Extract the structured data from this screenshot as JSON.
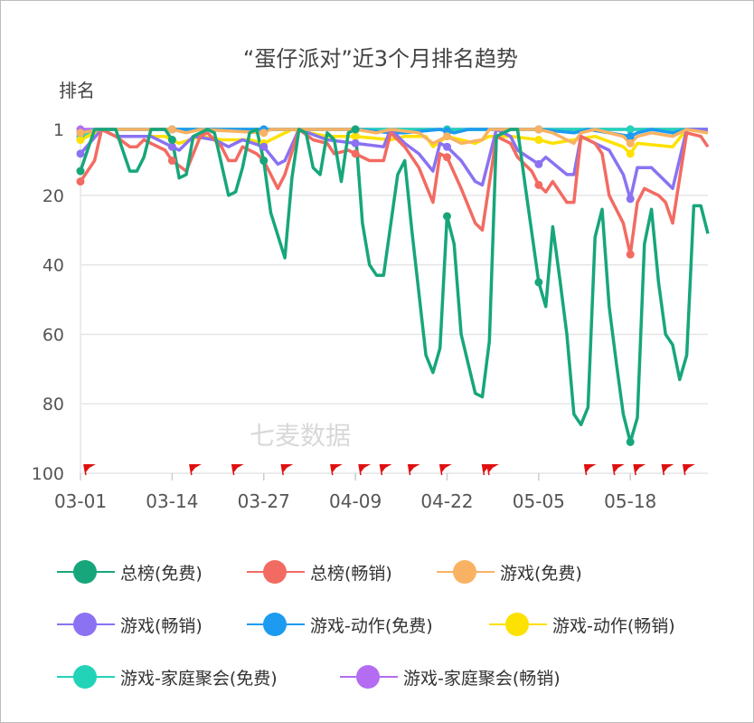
{
  "chart_data": {
    "type": "line",
    "title": "“蛋仔派对”近3个月排名趋势",
    "ylabel": "排名",
    "xlabel": "",
    "ylim": [
      1,
      100
    ],
    "y_inverted": true,
    "y_ticks": [
      "1",
      "20",
      "40",
      "60",
      "80",
      "100"
    ],
    "y_tick_values": [
      1,
      20,
      40,
      60,
      80,
      100
    ],
    "x_ticks": [
      "03-01",
      "03-14",
      "03-27",
      "04-09",
      "04-22",
      "05-05",
      "05-18"
    ],
    "x_tick_days": [
      0,
      13,
      26,
      39,
      52,
      65,
      78
    ],
    "x_range_days": [
      0,
      89
    ],
    "x_unit": "days since 03-01",
    "grid": true,
    "legend_position": "bottom",
    "watermark": "七麦数据",
    "event_flag_days": [
      0.5,
      15.5,
      21.5,
      28.5,
      35.5,
      39.5,
      42.5,
      46.5,
      51,
      57,
      57.7,
      71.5,
      75.5,
      78.5,
      82.5,
      85.5
    ],
    "series": [
      {
        "name": "总榜(免费)",
        "color": "#17a67b",
        "points": [
          [
            0,
            13
          ],
          [
            2,
            1
          ],
          [
            5,
            1
          ],
          [
            7,
            13
          ],
          [
            8,
            13
          ],
          [
            9,
            9
          ],
          [
            10,
            1
          ],
          [
            12,
            1
          ],
          [
            13,
            4
          ],
          [
            14,
            15
          ],
          [
            15,
            14
          ],
          [
            16,
            3
          ],
          [
            18,
            1
          ],
          [
            19,
            2
          ],
          [
            21,
            20
          ],
          [
            22,
            19
          ],
          [
            23,
            12
          ],
          [
            24,
            2
          ],
          [
            25,
            1
          ],
          [
            26,
            10
          ],
          [
            27,
            25
          ],
          [
            29,
            38
          ],
          [
            30,
            15
          ],
          [
            31,
            1
          ],
          [
            32,
            2
          ],
          [
            33,
            12
          ],
          [
            34,
            14
          ],
          [
            35,
            2
          ],
          [
            36,
            4
          ],
          [
            37,
            16
          ],
          [
            38,
            2
          ],
          [
            39,
            1
          ],
          [
            40,
            28
          ],
          [
            41,
            40
          ],
          [
            42,
            43
          ],
          [
            43,
            43
          ],
          [
            45,
            14
          ],
          [
            46,
            10
          ],
          [
            47,
            30
          ],
          [
            49,
            66
          ],
          [
            50,
            71
          ],
          [
            51,
            64
          ],
          [
            52,
            26
          ],
          [
            53,
            34
          ],
          [
            54,
            60
          ],
          [
            56,
            77
          ],
          [
            57,
            78
          ],
          [
            58,
            62
          ],
          [
            59,
            3
          ],
          [
            61,
            1
          ],
          [
            62,
            1
          ],
          [
            63,
            16
          ],
          [
            65,
            45
          ],
          [
            66,
            52
          ],
          [
            67,
            29
          ],
          [
            68,
            44
          ],
          [
            69,
            60
          ],
          [
            70,
            83
          ],
          [
            71,
            86
          ],
          [
            72,
            81
          ],
          [
            73,
            32
          ],
          [
            74,
            24
          ],
          [
            75,
            52
          ],
          [
            76,
            68
          ],
          [
            77,
            83
          ],
          [
            78,
            91
          ],
          [
            79,
            84
          ],
          [
            80,
            34
          ],
          [
            81,
            24
          ],
          [
            82,
            45
          ],
          [
            83,
            60
          ],
          [
            84,
            63
          ],
          [
            85,
            73
          ],
          [
            86,
            66
          ],
          [
            87,
            23
          ],
          [
            88,
            23
          ],
          [
            89,
            31
          ]
        ]
      },
      {
        "name": "总榜(畅销)",
        "color": "#f26b62",
        "points": [
          [
            0,
            16
          ],
          [
            2,
            10
          ],
          [
            3,
            1
          ],
          [
            5,
            3
          ],
          [
            7,
            6
          ],
          [
            8,
            6
          ],
          [
            9,
            4
          ],
          [
            10,
            5
          ],
          [
            12,
            7
          ],
          [
            13,
            10
          ],
          [
            15,
            13
          ],
          [
            17,
            3
          ],
          [
            18,
            2
          ],
          [
            20,
            6
          ],
          [
            21,
            10
          ],
          [
            22,
            10
          ],
          [
            23,
            6
          ],
          [
            25,
            8
          ],
          [
            26,
            10
          ],
          [
            28,
            18
          ],
          [
            29,
            14
          ],
          [
            31,
            1
          ],
          [
            33,
            4
          ],
          [
            35,
            5
          ],
          [
            36,
            8
          ],
          [
            38,
            7
          ],
          [
            39,
            8
          ],
          [
            41,
            10
          ],
          [
            43,
            10
          ],
          [
            44,
            2
          ],
          [
            46,
            6
          ],
          [
            48,
            12
          ],
          [
            50,
            22
          ],
          [
            51,
            8
          ],
          [
            52,
            9
          ],
          [
            54,
            18
          ],
          [
            56,
            28
          ],
          [
            57,
            30
          ],
          [
            59,
            3
          ],
          [
            61,
            5
          ],
          [
            62,
            9
          ],
          [
            64,
            13
          ],
          [
            65,
            17
          ],
          [
            66,
            19
          ],
          [
            67,
            16
          ],
          [
            69,
            22
          ],
          [
            70,
            22
          ],
          [
            71,
            3
          ],
          [
            73,
            5
          ],
          [
            74,
            8
          ],
          [
            75,
            20
          ],
          [
            77,
            28
          ],
          [
            78,
            37
          ],
          [
            79,
            22
          ],
          [
            80,
            18
          ],
          [
            82,
            20
          ],
          [
            83,
            22
          ],
          [
            84,
            28
          ],
          [
            86,
            2
          ],
          [
            88,
            3
          ],
          [
            89,
            6
          ]
        ]
      },
      {
        "name": "游戏(免费)",
        "color": "#f9b263",
        "points": [
          [
            0,
            2
          ],
          [
            3,
            1
          ],
          [
            8,
            1
          ],
          [
            13,
            1
          ],
          [
            15,
            2
          ],
          [
            17,
            1
          ],
          [
            26,
            2
          ],
          [
            27,
            1
          ],
          [
            39,
            1
          ],
          [
            42,
            2
          ],
          [
            44,
            1
          ],
          [
            48,
            2
          ],
          [
            50,
            5
          ],
          [
            52,
            3
          ],
          [
            54,
            5
          ],
          [
            57,
            4
          ],
          [
            58,
            1
          ],
          [
            65,
            1
          ],
          [
            67,
            2
          ],
          [
            70,
            5
          ],
          [
            71,
            2
          ],
          [
            73,
            1
          ],
          [
            77,
            3
          ],
          [
            78,
            5
          ],
          [
            79,
            3
          ],
          [
            81,
            2
          ],
          [
            84,
            3
          ],
          [
            86,
            1
          ],
          [
            89,
            2
          ]
        ]
      },
      {
        "name": "游戏(畅销)",
        "color": "#8a72f2",
        "points": [
          [
            0,
            8
          ],
          [
            3,
            1
          ],
          [
            5,
            3
          ],
          [
            10,
            3
          ],
          [
            13,
            6
          ],
          [
            14,
            7
          ],
          [
            16,
            3
          ],
          [
            19,
            4
          ],
          [
            21,
            6
          ],
          [
            23,
            4
          ],
          [
            26,
            6
          ],
          [
            28,
            11
          ],
          [
            29,
            10
          ],
          [
            31,
            1
          ],
          [
            35,
            4
          ],
          [
            39,
            5
          ],
          [
            43,
            6
          ],
          [
            44,
            1
          ],
          [
            46,
            5
          ],
          [
            48,
            8
          ],
          [
            50,
            13
          ],
          [
            51,
            5
          ],
          [
            52,
            6
          ],
          [
            54,
            10
          ],
          [
            56,
            16
          ],
          [
            57,
            17
          ],
          [
            59,
            1
          ],
          [
            61,
            3
          ],
          [
            62,
            7
          ],
          [
            65,
            11
          ],
          [
            66,
            9
          ],
          [
            69,
            14
          ],
          [
            70,
            14
          ],
          [
            71,
            3
          ],
          [
            73,
            5
          ],
          [
            75,
            7
          ],
          [
            77,
            14
          ],
          [
            78,
            21
          ],
          [
            79,
            12
          ],
          [
            81,
            12
          ],
          [
            84,
            18
          ],
          [
            86,
            1
          ],
          [
            89,
            1
          ]
        ]
      },
      {
        "name": "游戏-动作(免费)",
        "color": "#1d9bf0",
        "points": [
          [
            0,
            2
          ],
          [
            3,
            1
          ],
          [
            13,
            1
          ],
          [
            26,
            1
          ],
          [
            39,
            1
          ],
          [
            44,
            2
          ],
          [
            46,
            2
          ],
          [
            51,
            1
          ],
          [
            53,
            2
          ],
          [
            55,
            1
          ],
          [
            65,
            1
          ],
          [
            70,
            2
          ],
          [
            72,
            1
          ],
          [
            78,
            3
          ],
          [
            79,
            2
          ],
          [
            81,
            1
          ],
          [
            84,
            2
          ],
          [
            86,
            1
          ],
          [
            89,
            1
          ]
        ]
      },
      {
        "name": "游戏-动作(畅销)",
        "color": "#fde100",
        "points": [
          [
            0,
            4
          ],
          [
            3,
            1
          ],
          [
            5,
            3
          ],
          [
            12,
            3
          ],
          [
            14,
            5
          ],
          [
            17,
            3
          ],
          [
            20,
            4
          ],
          [
            24,
            4
          ],
          [
            26,
            5
          ],
          [
            30,
            1
          ],
          [
            35,
            3
          ],
          [
            39,
            3
          ],
          [
            44,
            4
          ],
          [
            46,
            3
          ],
          [
            49,
            3
          ],
          [
            50,
            6
          ],
          [
            52,
            3
          ],
          [
            56,
            5
          ],
          [
            58,
            3
          ],
          [
            61,
            3
          ],
          [
            65,
            4
          ],
          [
            67,
            5
          ],
          [
            70,
            4
          ],
          [
            73,
            3
          ],
          [
            77,
            6
          ],
          [
            78,
            8
          ],
          [
            79,
            5
          ],
          [
            84,
            6
          ],
          [
            86,
            1
          ],
          [
            89,
            2
          ]
        ]
      },
      {
        "name": "游戏-家庭聚会(免费)",
        "color": "#22d3b8",
        "points": [
          [
            0,
            3
          ],
          [
            2,
            1
          ],
          [
            89,
            1
          ]
        ]
      },
      {
        "name": "游戏-家庭聚会(畅销)",
        "color": "#b36cf2",
        "points": [
          [
            0,
            1
          ],
          [
            89,
            1
          ]
        ]
      }
    ]
  }
}
